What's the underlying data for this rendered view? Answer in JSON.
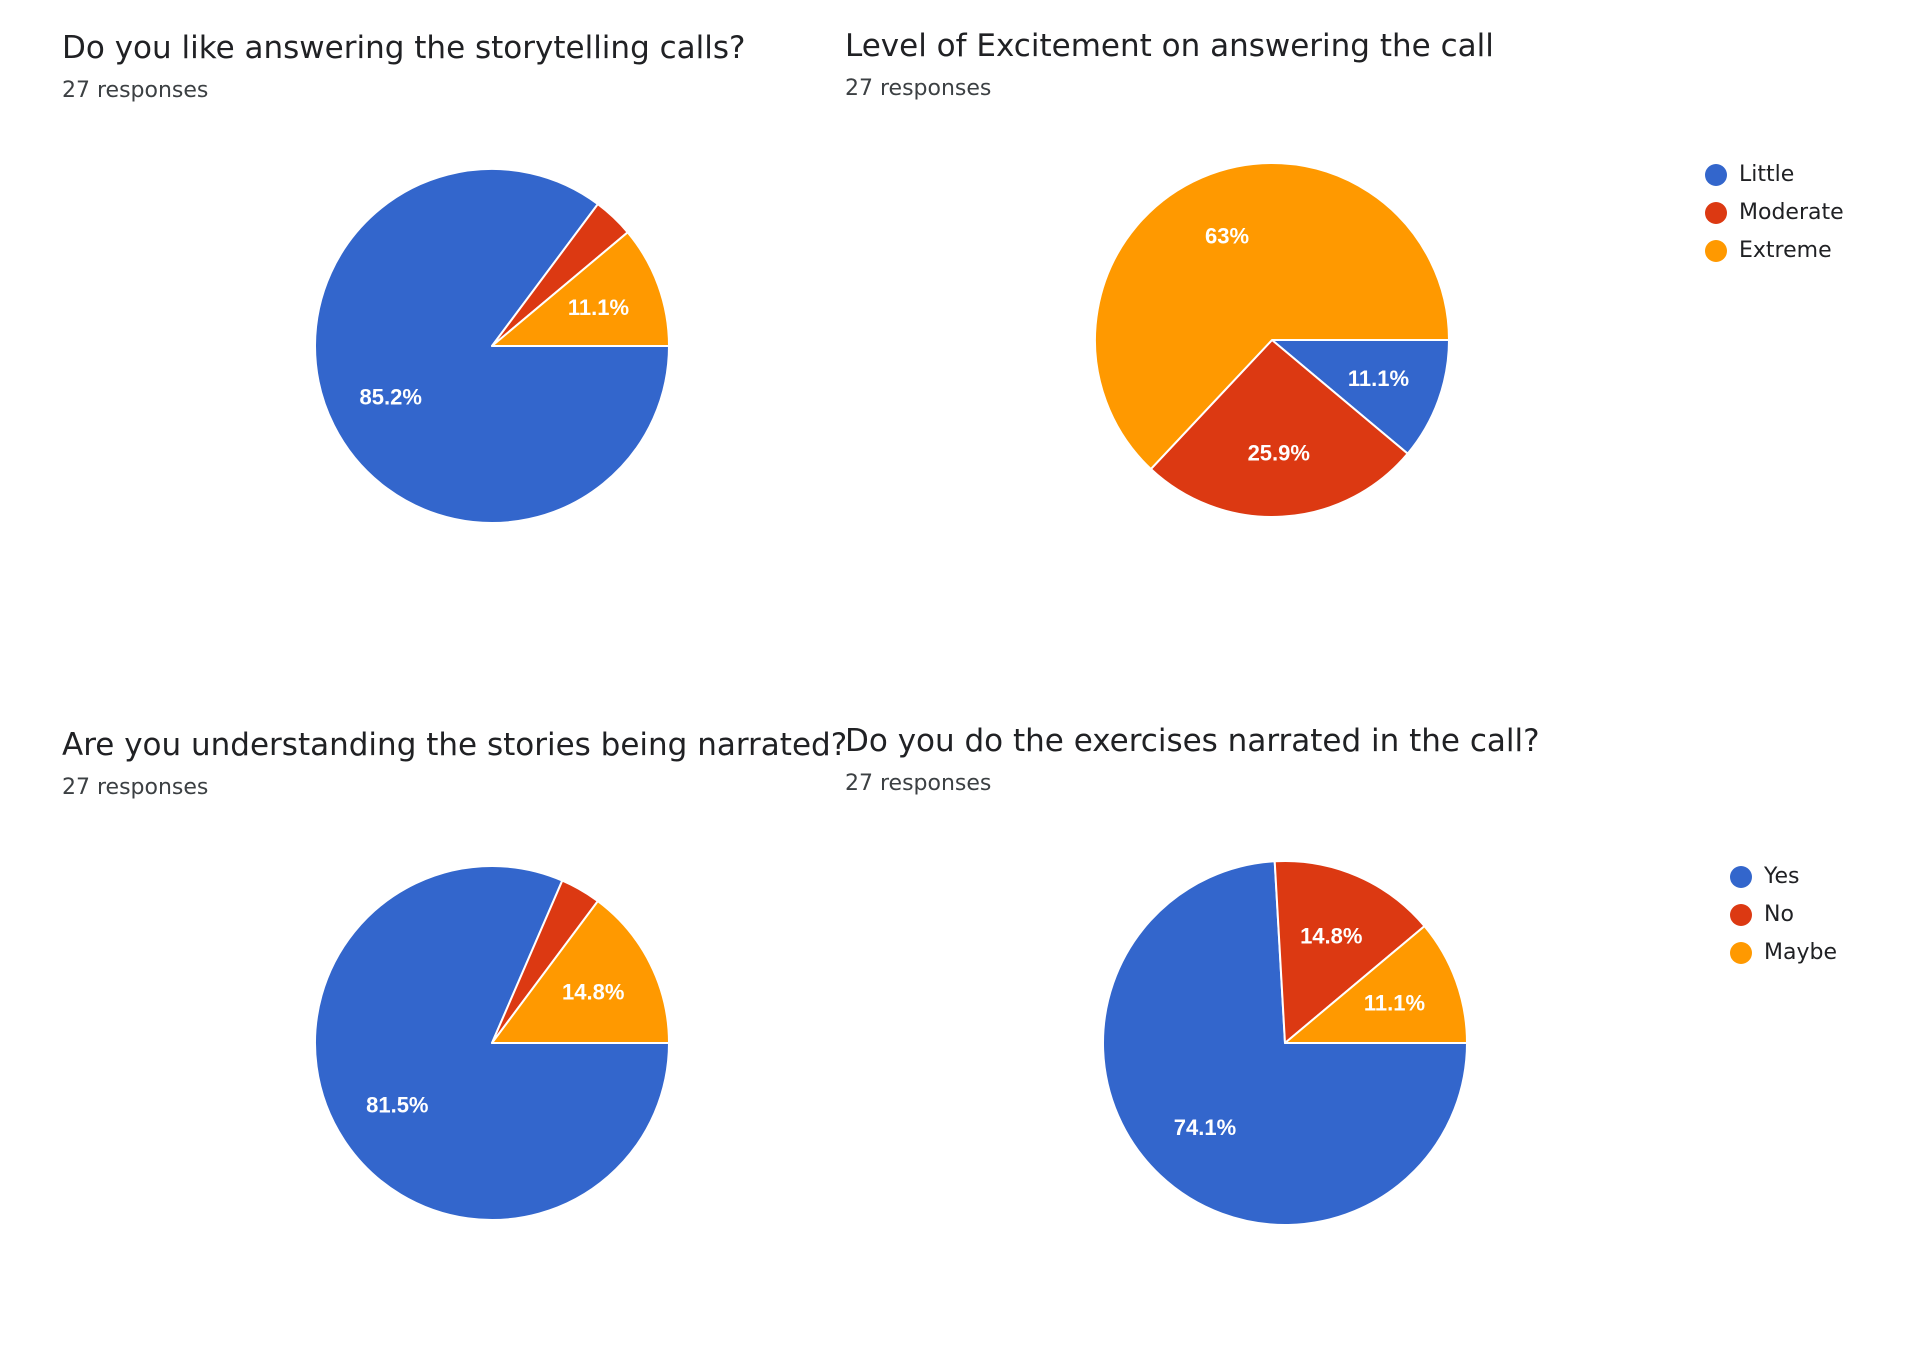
{
  "colors": {
    "blue": "#3366cc",
    "red": "#dc3912",
    "orange": "#ff9900"
  },
  "chart_data": [
    {
      "type": "pie",
      "title": "Do you like answering the storytelling calls?",
      "subtitle": "27 responses",
      "slices": [
        {
          "label": "",
          "value": 85.2,
          "display": "85.2%",
          "color": "#3366cc"
        },
        {
          "label": "",
          "value": 3.7,
          "display": "",
          "color": "#dc3912"
        },
        {
          "label": "",
          "value": 11.1,
          "display": "11.1%",
          "color": "#ff9900"
        }
      ],
      "legend": []
    },
    {
      "type": "pie",
      "title": "Level of Excitement on answering the call",
      "subtitle": "27 responses",
      "slices": [
        {
          "label": "Little",
          "value": 11.1,
          "display": "11.1%",
          "color": "#3366cc"
        },
        {
          "label": "Moderate",
          "value": 25.9,
          "display": "25.9%",
          "color": "#dc3912"
        },
        {
          "label": "Extreme",
          "value": 63,
          "display": "63%",
          "color": "#ff9900"
        }
      ],
      "legend": [
        "Little",
        "Moderate",
        "Extreme"
      ],
      "legend_position": "right"
    },
    {
      "type": "pie",
      "title": "Are you understanding the stories being narrated?",
      "subtitle": "27 responses",
      "slices": [
        {
          "label": "",
          "value": 81.5,
          "display": "81.5%",
          "color": "#3366cc"
        },
        {
          "label": "",
          "value": 3.7,
          "display": "",
          "color": "#dc3912"
        },
        {
          "label": "",
          "value": 14.8,
          "display": "14.8%",
          "color": "#ff9900"
        }
      ],
      "legend": []
    },
    {
      "type": "pie",
      "title": "Do you do the exercises narrated in the call?",
      "subtitle": "27 responses",
      "slices": [
        {
          "label": "Yes",
          "value": 74.1,
          "display": "74.1%",
          "color": "#3366cc"
        },
        {
          "label": "No",
          "value": 14.8,
          "display": "14.8%",
          "color": "#dc3912"
        },
        {
          "label": "Maybe",
          "value": 11.1,
          "display": "11.1%",
          "color": "#ff9900"
        }
      ],
      "legend": [
        "Yes",
        "No",
        "Maybe"
      ],
      "legend_position": "right"
    }
  ]
}
